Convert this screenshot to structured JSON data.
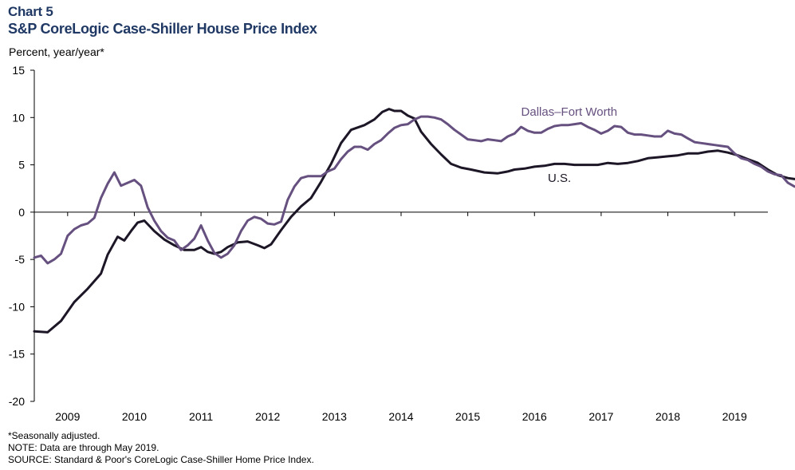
{
  "header": {
    "chart_label": "Chart 5",
    "title": "S&P CoreLogic Case-Shiller House Price Index"
  },
  "footer": {
    "notes": [
      "*Seasonally adjusted.",
      "NOTE: Data are through May 2019.",
      "SOURCE: Standard & Poor's CoreLogic Case-Shiller Home Price Index."
    ]
  },
  "colors": {
    "title": "#1f3864",
    "us": "#1c1626",
    "dfw": "#66507f",
    "axis": "#000000"
  },
  "chart_data": {
    "type": "line",
    "title": "S&P CoreLogic Case-Shiller House Price Index",
    "ylabel": "Percent, year/year*",
    "xlabel": "",
    "ylim": [
      -20,
      15
    ],
    "yticks": [
      "15",
      "10",
      "5",
      "0",
      "-5",
      "-10",
      "-15",
      "-20"
    ],
    "ytick_values": [
      15,
      10,
      5,
      0,
      -5,
      -10,
      -15,
      -20
    ],
    "x_range": [
      2008.5,
      2019.5
    ],
    "xtick_labels": [
      "2009",
      "2010",
      "2011",
      "2012",
      "2013",
      "2014",
      "2015",
      "2016",
      "2017",
      "2018",
      "2019"
    ],
    "grid": false,
    "series": [
      {
        "name": "U.S.",
        "label": "U.S.",
        "color": "#1c1626",
        "points": [
          [
            2008.5,
            -12.6
          ],
          [
            2008.7,
            -12.7
          ],
          [
            2008.9,
            -11.5
          ],
          [
            2009.1,
            -9.5
          ],
          [
            2009.3,
            -8.1
          ],
          [
            2009.5,
            -6.5
          ],
          [
            2009.6,
            -4.5
          ],
          [
            2009.75,
            -2.6
          ],
          [
            2009.85,
            -3.0
          ],
          [
            2009.95,
            -2.0
          ],
          [
            2010.05,
            -1.1
          ],
          [
            2010.15,
            -0.9
          ],
          [
            2010.3,
            -2.0
          ],
          [
            2010.45,
            -2.9
          ],
          [
            2010.6,
            -3.5
          ],
          [
            2010.75,
            -4.0
          ],
          [
            2010.9,
            -4.0
          ],
          [
            2011.0,
            -3.7
          ],
          [
            2011.1,
            -4.2
          ],
          [
            2011.2,
            -4.4
          ],
          [
            2011.3,
            -4.2
          ],
          [
            2011.4,
            -3.7
          ],
          [
            2011.55,
            -3.2
          ],
          [
            2011.7,
            -3.1
          ],
          [
            2011.85,
            -3.5
          ],
          [
            2011.95,
            -3.8
          ],
          [
            2012.05,
            -3.4
          ],
          [
            2012.2,
            -1.9
          ],
          [
            2012.35,
            -0.5
          ],
          [
            2012.5,
            0.6
          ],
          [
            2012.65,
            1.5
          ],
          [
            2012.8,
            3.2
          ],
          [
            2012.95,
            5.1
          ],
          [
            2013.1,
            7.3
          ],
          [
            2013.25,
            8.7
          ],
          [
            2013.45,
            9.2
          ],
          [
            2013.6,
            9.8
          ],
          [
            2013.72,
            10.6
          ],
          [
            2013.82,
            10.9
          ],
          [
            2013.9,
            10.7
          ],
          [
            2014.0,
            10.7
          ],
          [
            2014.1,
            10.2
          ],
          [
            2014.2,
            9.9
          ],
          [
            2014.3,
            8.5
          ],
          [
            2014.45,
            7.2
          ],
          [
            2014.6,
            6.1
          ],
          [
            2014.75,
            5.1
          ],
          [
            2014.9,
            4.7
          ],
          [
            2015.05,
            4.5
          ],
          [
            2015.25,
            4.2
          ],
          [
            2015.45,
            4.1
          ],
          [
            2015.6,
            4.3
          ],
          [
            2015.7,
            4.5
          ],
          [
            2015.85,
            4.6
          ],
          [
            2016.0,
            4.8
          ],
          [
            2016.15,
            4.9
          ],
          [
            2016.3,
            5.1
          ],
          [
            2016.45,
            5.1
          ],
          [
            2016.6,
            5.0
          ],
          [
            2016.8,
            5.0
          ],
          [
            2016.95,
            5.0
          ],
          [
            2017.1,
            5.2
          ],
          [
            2017.25,
            5.1
          ],
          [
            2017.4,
            5.2
          ],
          [
            2017.55,
            5.4
          ],
          [
            2017.7,
            5.7
          ],
          [
            2017.85,
            5.8
          ],
          [
            2018.0,
            5.9
          ],
          [
            2018.15,
            6.0
          ],
          [
            2018.3,
            6.2
          ],
          [
            2018.45,
            6.2
          ],
          [
            2018.6,
            6.4
          ],
          [
            2018.75,
            6.5
          ],
          [
            2018.9,
            6.3
          ],
          [
            2019.05,
            6.0
          ],
          [
            2019.2,
            5.6
          ],
          [
            2019.35,
            5.2
          ],
          [
            2019.5,
            4.5
          ],
          [
            2019.65,
            3.9
          ],
          [
            2019.8,
            3.6
          ],
          [
            2019.9,
            3.5
          ]
        ]
      },
      {
        "name": "Dallas–Fort Worth",
        "label": "Dallas–Fort Worth",
        "color": "#66507f",
        "points": [
          [
            2008.5,
            -4.8
          ],
          [
            2008.6,
            -4.6
          ],
          [
            2008.7,
            -5.4
          ],
          [
            2008.8,
            -5.0
          ],
          [
            2008.9,
            -4.4
          ],
          [
            2009.0,
            -2.5
          ],
          [
            2009.1,
            -1.8
          ],
          [
            2009.2,
            -1.4
          ],
          [
            2009.3,
            -1.2
          ],
          [
            2009.4,
            -0.6
          ],
          [
            2009.5,
            1.5
          ],
          [
            2009.6,
            3.0
          ],
          [
            2009.7,
            4.2
          ],
          [
            2009.8,
            2.8
          ],
          [
            2009.9,
            3.1
          ],
          [
            2010.0,
            3.4
          ],
          [
            2010.1,
            2.8
          ],
          [
            2010.2,
            0.5
          ],
          [
            2010.3,
            -0.9
          ],
          [
            2010.4,
            -2.0
          ],
          [
            2010.5,
            -2.7
          ],
          [
            2010.6,
            -3.0
          ],
          [
            2010.7,
            -4.0
          ],
          [
            2010.8,
            -3.5
          ],
          [
            2010.9,
            -2.8
          ],
          [
            2011.0,
            -1.4
          ],
          [
            2011.1,
            -3.0
          ],
          [
            2011.2,
            -4.3
          ],
          [
            2011.3,
            -4.8
          ],
          [
            2011.4,
            -4.4
          ],
          [
            2011.5,
            -3.5
          ],
          [
            2011.6,
            -2.0
          ],
          [
            2011.7,
            -0.9
          ],
          [
            2011.8,
            -0.5
          ],
          [
            2011.9,
            -0.7
          ],
          [
            2012.0,
            -1.2
          ],
          [
            2012.1,
            -1.3
          ],
          [
            2012.2,
            -1.0
          ],
          [
            2012.3,
            1.3
          ],
          [
            2012.4,
            2.7
          ],
          [
            2012.5,
            3.6
          ],
          [
            2012.6,
            3.8
          ],
          [
            2012.7,
            3.8
          ],
          [
            2012.8,
            3.8
          ],
          [
            2012.9,
            4.3
          ],
          [
            2013.0,
            4.6
          ],
          [
            2013.1,
            5.6
          ],
          [
            2013.2,
            6.4
          ],
          [
            2013.3,
            6.9
          ],
          [
            2013.4,
            6.9
          ],
          [
            2013.5,
            6.6
          ],
          [
            2013.6,
            7.2
          ],
          [
            2013.7,
            7.6
          ],
          [
            2013.8,
            8.3
          ],
          [
            2013.9,
            8.9
          ],
          [
            2014.0,
            9.2
          ],
          [
            2014.1,
            9.3
          ],
          [
            2014.2,
            9.8
          ],
          [
            2014.3,
            10.1
          ],
          [
            2014.4,
            10.1
          ],
          [
            2014.5,
            10.0
          ],
          [
            2014.6,
            9.8
          ],
          [
            2014.7,
            9.3
          ],
          [
            2014.8,
            8.7
          ],
          [
            2014.9,
            8.2
          ],
          [
            2015.0,
            7.7
          ],
          [
            2015.1,
            7.6
          ],
          [
            2015.2,
            7.5
          ],
          [
            2015.3,
            7.7
          ],
          [
            2015.4,
            7.6
          ],
          [
            2015.5,
            7.5
          ],
          [
            2015.6,
            8.0
          ],
          [
            2015.7,
            8.3
          ],
          [
            2015.8,
            9.0
          ],
          [
            2015.9,
            8.6
          ],
          [
            2016.0,
            8.4
          ],
          [
            2016.1,
            8.4
          ],
          [
            2016.2,
            8.8
          ],
          [
            2016.3,
            9.1
          ],
          [
            2016.4,
            9.2
          ],
          [
            2016.5,
            9.2
          ],
          [
            2016.6,
            9.3
          ],
          [
            2016.7,
            9.4
          ],
          [
            2016.8,
            9.0
          ],
          [
            2016.9,
            8.7
          ],
          [
            2017.0,
            8.3
          ],
          [
            2017.1,
            8.6
          ],
          [
            2017.2,
            9.1
          ],
          [
            2017.3,
            9.0
          ],
          [
            2017.4,
            8.4
          ],
          [
            2017.5,
            8.2
          ],
          [
            2017.6,
            8.2
          ],
          [
            2017.7,
            8.1
          ],
          [
            2017.8,
            8.0
          ],
          [
            2017.9,
            8.0
          ],
          [
            2018.0,
            8.6
          ],
          [
            2018.1,
            8.3
          ],
          [
            2018.2,
            8.2
          ],
          [
            2018.3,
            7.8
          ],
          [
            2018.4,
            7.4
          ],
          [
            2018.5,
            7.3
          ],
          [
            2018.6,
            7.2
          ],
          [
            2018.7,
            7.1
          ],
          [
            2018.8,
            7.0
          ],
          [
            2018.9,
            6.9
          ],
          [
            2019.0,
            6.2
          ],
          [
            2019.1,
            5.7
          ],
          [
            2019.2,
            5.5
          ],
          [
            2019.3,
            5.1
          ],
          [
            2019.4,
            4.8
          ],
          [
            2019.5,
            4.3
          ],
          [
            2019.6,
            4.0
          ],
          [
            2019.7,
            3.9
          ],
          [
            2019.8,
            3.1
          ],
          [
            2019.9,
            2.7
          ],
          [
            2020.0,
            2.6
          ]
        ]
      }
    ]
  }
}
